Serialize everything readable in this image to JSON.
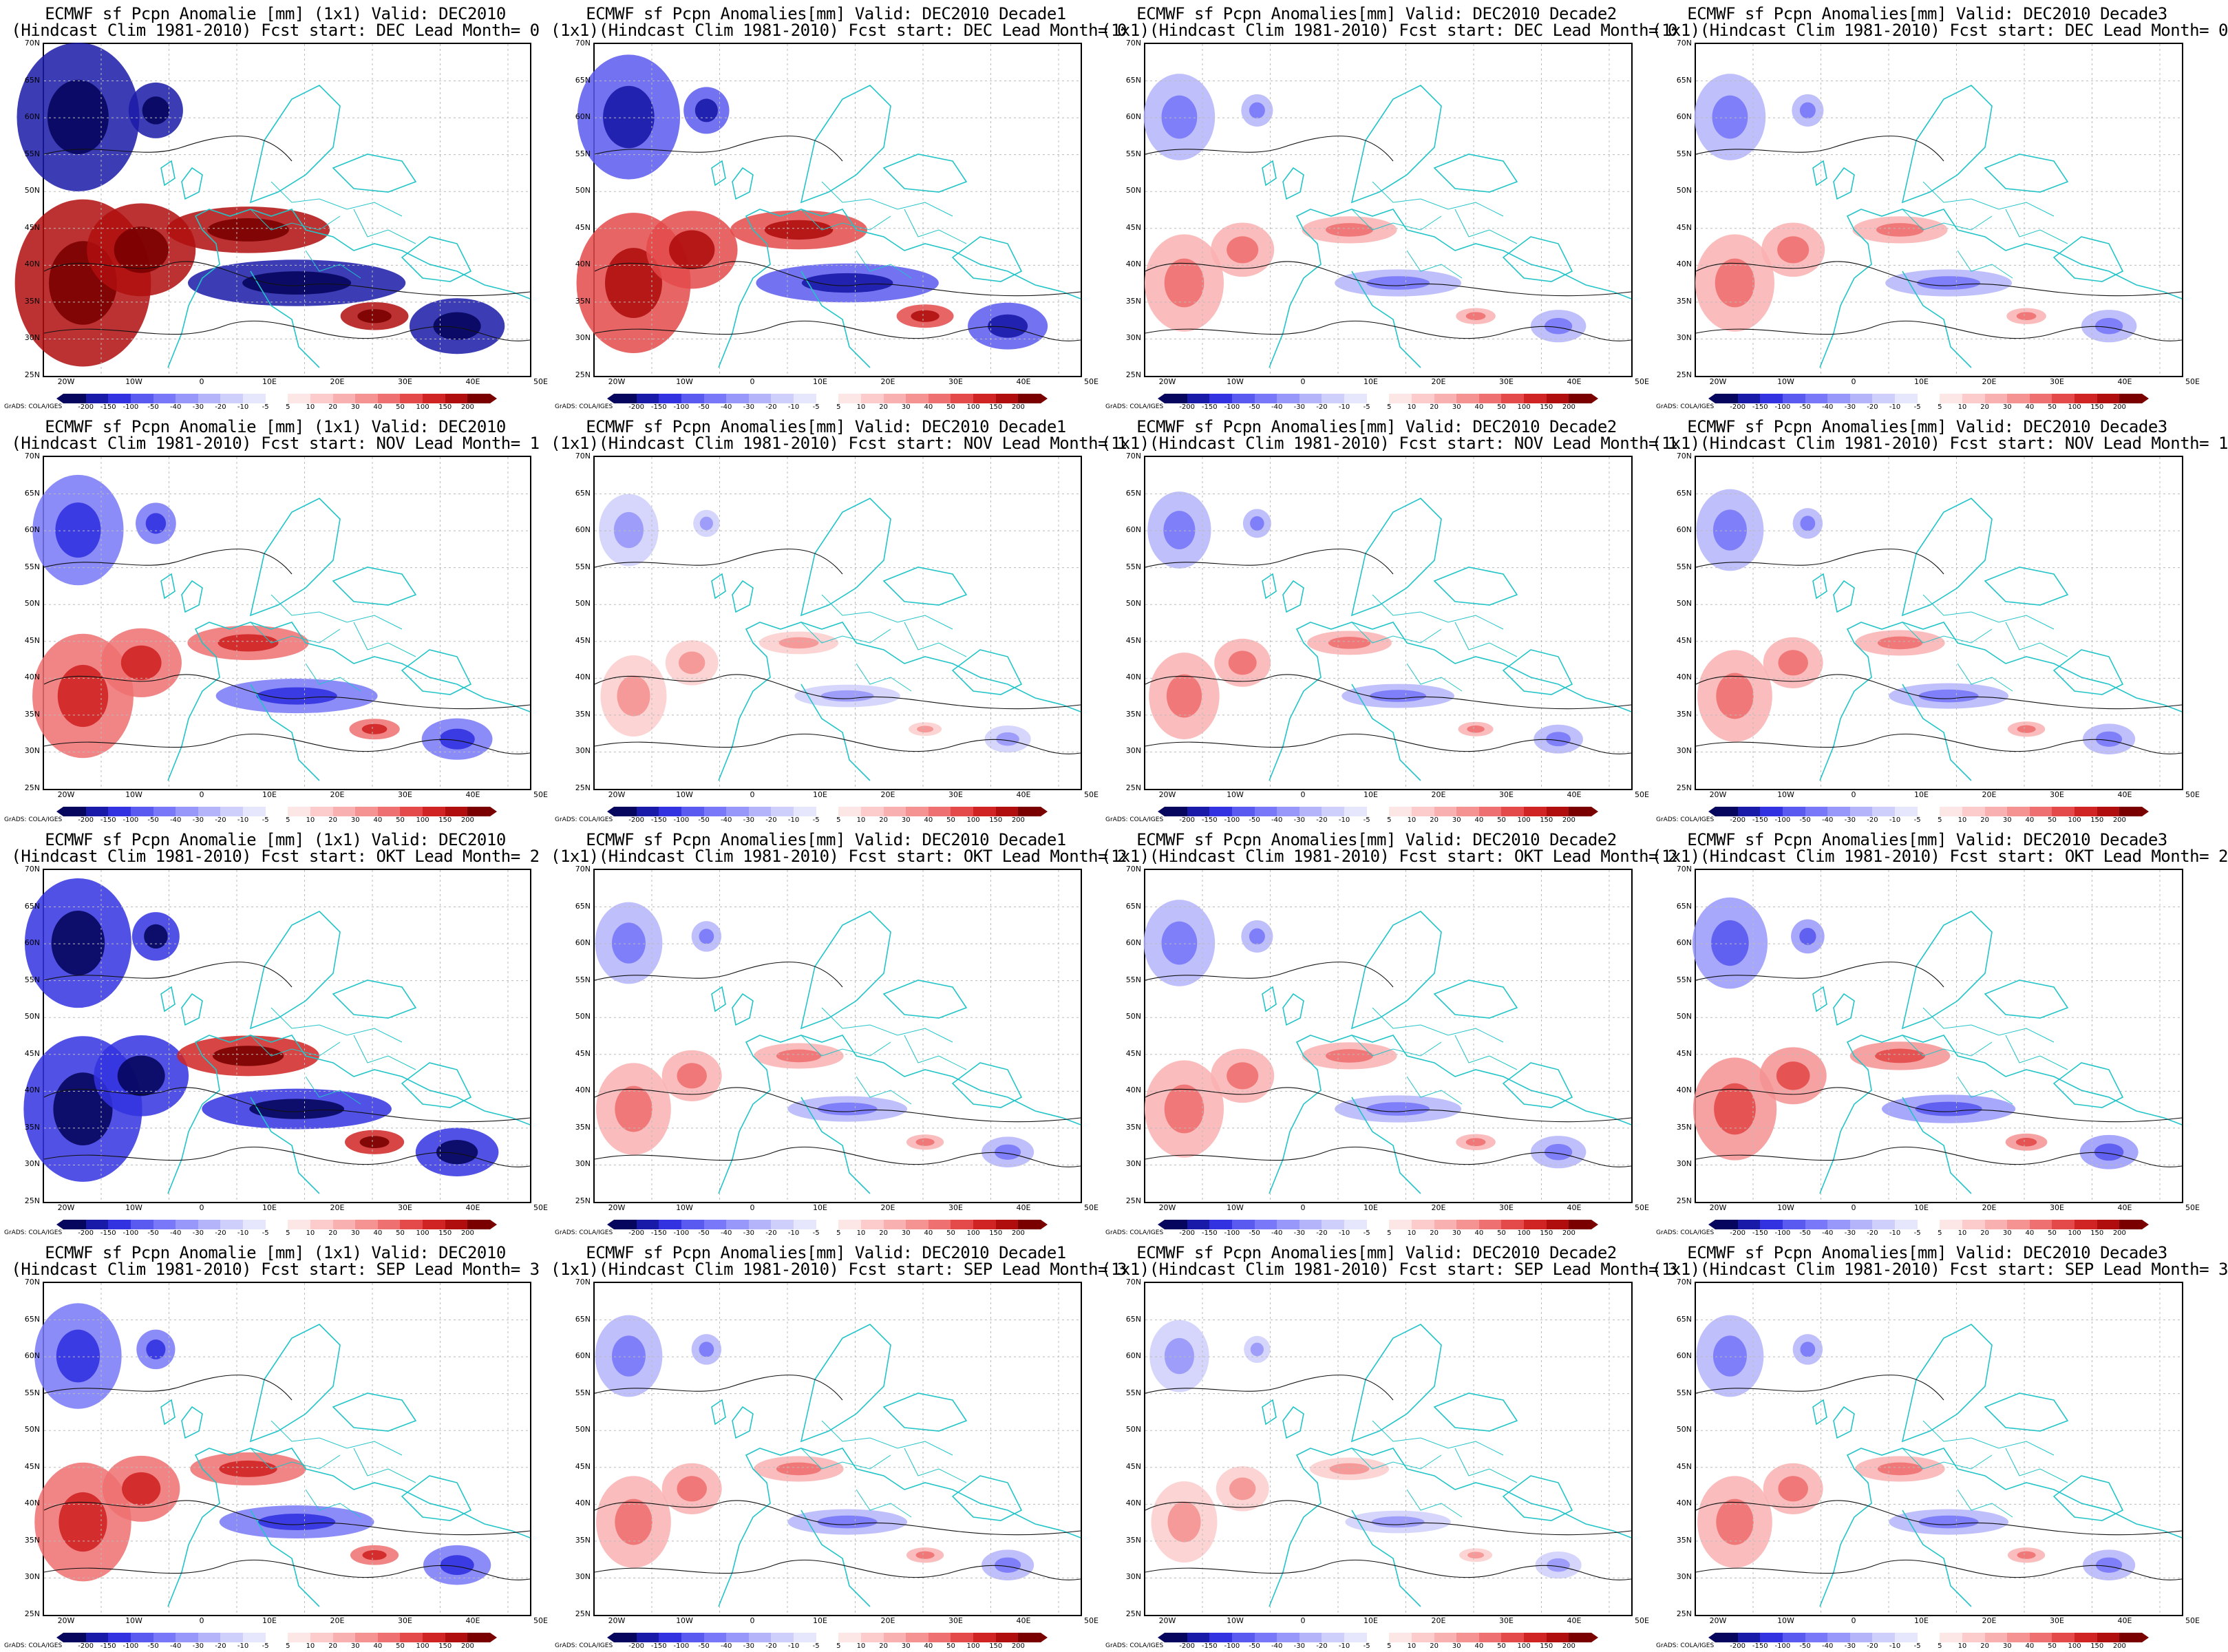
{
  "credit": "GrADS: COLA/IGES",
  "lat_labels": [
    "70N",
    "65N",
    "60N",
    "55N",
    "50N",
    "45N",
    "40N",
    "35N",
    "30N",
    "25N"
  ],
  "lon_labels": [
    "20W",
    "10W",
    "0",
    "10E",
    "20E",
    "30E",
    "40E",
    "50E"
  ],
  "legend": {
    "ticks": [
      "-200",
      "-150",
      "-100",
      "-50",
      "-40",
      "-30",
      "-20",
      "-10",
      "-5",
      "5",
      "10",
      "20",
      "30",
      "40",
      "50",
      "100",
      "150",
      "200"
    ],
    "colors": [
      "#06065e",
      "#1a1aa8",
      "#3232e0",
      "#5a5af0",
      "#7878f8",
      "#9898fa",
      "#b4b4fb",
      "#cfcffc",
      "#e6e6fd",
      "#ffffff",
      "#fde6e6",
      "#fccccc",
      "#f9b0b0",
      "#f59292",
      "#ef7070",
      "#e44a4a",
      "#d02424",
      "#b00e0e",
      "#7a0000"
    ]
  },
  "panels": [
    {
      "line1": "ECMWF sf Pcpn Anomalie [mm] (1x1) Valid: DEC2010",
      "line2": "(Hindcast Clim 1981-2010) Fcst start: DEC  Lead Month= 0",
      "intensity": 1.0
    },
    {
      "line1": "ECMWF sf Pcpn Anomalies[mm] Valid: DEC2010 Decade1",
      "line2": "(1x1)(Hindcast Clim 1981-2010) Fcst start: DEC  Lead Month= 0",
      "intensity": 0.75
    },
    {
      "line1": "ECMWF sf Pcpn Anomalies[mm] Valid: DEC2010 Decade2",
      "line2": "(1x1)(Hindcast Clim 1981-2010) Fcst start: DEC  Lead Month= 0",
      "intensity": 0.35
    },
    {
      "line1": "ECMWF sf Pcpn Anomalies[mm] Valid: DEC2010 Decade3",
      "line2": "(1x1)(Hindcast Clim 1981-2010) Fcst start: DEC  Lead Month= 0",
      "intensity": 0.35
    },
    {
      "line1": "ECMWF sf Pcpn Anomalie [mm] (1x1) Valid: DEC2010",
      "line2": "(Hindcast Clim 1981-2010) Fcst start: NOV  Lead Month= 1",
      "intensity": 0.6
    },
    {
      "line1": "ECMWF sf Pcpn Anomalies[mm] Valid: DEC2010 Decade1",
      "line2": "(1x1)(Hindcast Clim 1981-2010) Fcst start: NOV  Lead Month= 1",
      "intensity": 0.2
    },
    {
      "line1": "ECMWF sf Pcpn Anomalies[mm] Valid: DEC2010 Decade2",
      "line2": "(1x1)(Hindcast Clim 1981-2010) Fcst start: NOV  Lead Month= 1",
      "intensity": 0.25
    },
    {
      "line1": "ECMWF sf Pcpn Anomalies[mm] Valid: DEC2010 Decade3",
      "line2": "(1x1)(Hindcast Clim 1981-2010) Fcst start: NOV  Lead Month= 1",
      "intensity": 0.3
    },
    {
      "line1": "ECMWF sf Pcpn Anomalie [mm] (1x1) Valid: DEC2010",
      "line2": "(Hindcast Clim 1981-2010) Fcst start: OKT  Lead Month= 2",
      "intensity": 0.8
    },
    {
      "line1": "ECMWF sf Pcpn Anomalies[mm] Valid: DEC2010 Decade1",
      "line2": "(1x1)(Hindcast Clim 1981-2010) Fcst start: OKT  Lead Month= 2",
      "intensity": 0.3
    },
    {
      "line1": "ECMWF sf Pcpn Anomalies[mm] Valid: DEC2010 Decade2",
      "line2": "(1x1)(Hindcast Clim 1981-2010) Fcst start: OKT  Lead Month= 2",
      "intensity": 0.35
    },
    {
      "line1": "ECMWF sf Pcpn Anomalies[mm] Valid: DEC2010 Decade3",
      "line2": "(1x1)(Hindcast Clim 1981-2010) Fcst start: OKT  Lead Month= 2",
      "intensity": 0.4
    },
    {
      "line1": "ECMWF sf Pcpn Anomalie [mm] (1x1) Valid: DEC2010",
      "line2": "(Hindcast Clim 1981-2010) Fcst start: SEP  Lead Month= 3",
      "intensity": 0.55
    },
    {
      "line1": "ECMWF sf Pcpn Anomalies[mm] Valid: DEC2010 Decade1",
      "line2": "(1x1)(Hindcast Clim 1981-2010) Fcst start: SEP  Lead Month= 3",
      "intensity": 0.3
    },
    {
      "line1": "ECMWF sf Pcpn Anomalies[mm] Valid: DEC2010 Decade2",
      "line2": "(1x1)(Hindcast Clim 1981-2010) Fcst start: SEP  Lead Month= 3",
      "intensity": 0.2
    },
    {
      "line1": "ECMWF sf Pcpn Anomalies[mm] Valid: DEC2010 Decade3",
      "line2": "(1x1)(Hindcast Clim 1981-2010) Fcst start: SEP  Lead Month= 3",
      "intensity": 0.3
    }
  ]
}
